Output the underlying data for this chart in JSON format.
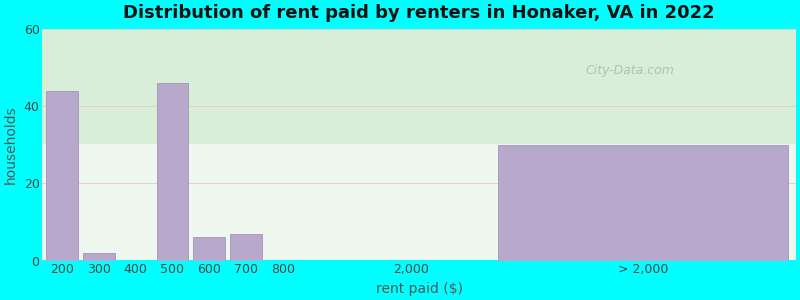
{
  "title": "Distribution of rent paid by renters in Honaker, VA in 2022",
  "xlabel": "rent paid ($)",
  "ylabel": "households",
  "background_color": "#00FFFF",
  "plot_bg_color_top": "#f0f8f0",
  "plot_bg_color_bottom": "#e0f5e8",
  "bar_color": "#b8a8cc",
  "bar_edge_color": "#9988bb",
  "categories": [
    "200",
    "300",
    "400",
    "500",
    "600",
    "700",
    "800",
    "2,000",
    "> 2,000"
  ],
  "values": [
    44,
    2,
    0,
    46,
    6,
    7,
    0,
    0,
    30
  ],
  "ylim": [
    0,
    60
  ],
  "yticks": [
    0,
    20,
    40,
    60
  ],
  "title_fontsize": 13,
  "axis_label_fontsize": 10,
  "tick_fontsize": 9,
  "watermark": "City-Data.com"
}
